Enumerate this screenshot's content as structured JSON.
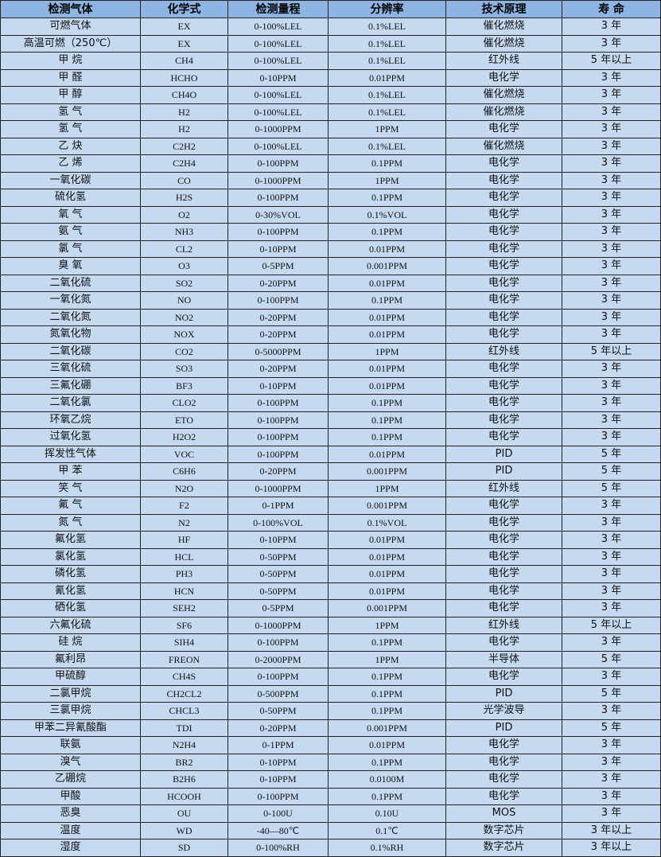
{
  "headers": [
    "检测气体",
    "化学式",
    "检测量程",
    "分辨率",
    "技术原理",
    "寿 命"
  ],
  "colors": {
    "header_bg": "#8db4e2",
    "row_bg": "#c5d9f1",
    "border": "#222222"
  },
  "rows": [
    [
      "可燃气体",
      "EX",
      "0-100%LEL",
      "0.1%LEL",
      "催化燃烧",
      "3 年"
    ],
    [
      "高温可燃（250℃）",
      "EX",
      "0-100%LEL",
      "0.1%LEL",
      "催化燃烧",
      "3 年"
    ],
    [
      "甲 烷",
      "CH4",
      "0-100%LEL",
      "0.1%LEL",
      "红外线",
      "5 年以上"
    ],
    [
      "甲 醛",
      "HCHO",
      "0-10PPM",
      "0.01PPM",
      "电化学",
      "3 年"
    ],
    [
      "甲 醇",
      "CH4O",
      "0-100%LEL",
      "0.1%LEL",
      "催化燃烧",
      "3 年"
    ],
    [
      "氢 气",
      "H2",
      "0-100%LEL",
      "0.1%LEL",
      "催化燃烧",
      "3 年"
    ],
    [
      "氢 气",
      "H2",
      "0-1000PPM",
      "1PPM",
      "电化学",
      "3 年"
    ],
    [
      "乙 炔",
      "C2H2",
      "0-100%LEL",
      "0.1%LEL",
      "催化燃烧",
      "3 年"
    ],
    [
      "乙 烯",
      "C2H4",
      "0-100PPM",
      "0.1PPM",
      "电化学",
      "3 年"
    ],
    [
      "一氧化碳",
      "CO",
      "0-1000PPM",
      "1PPM",
      "电化学",
      "3 年"
    ],
    [
      "硫化氢",
      "H2S",
      "0-100PPM",
      "0.1PPM",
      "电化学",
      "3 年"
    ],
    [
      "氧 气",
      "O2",
      "0-30%VOL",
      "0.1%VOL",
      "电化学",
      "3 年"
    ],
    [
      "氨 气",
      "NH3",
      "0-100PPM",
      "0.1PPM",
      "电化学",
      "3 年"
    ],
    [
      "氯 气",
      "CL2",
      "0-10PPM",
      "0.01PPM",
      "电化学",
      "3 年"
    ],
    [
      "臭 氧",
      "O3",
      "0-5PPM",
      "0.001PPM",
      "电化学",
      "3 年"
    ],
    [
      "二氧化硫",
      "SO2",
      "0-20PPM",
      "0.01PPM",
      "电化学",
      "3 年"
    ],
    [
      "一氧化氮",
      "NO",
      "0-100PPM",
      "0.1PPM",
      "电化学",
      "3 年"
    ],
    [
      "二氧化氮",
      "NO2",
      "0-20PPM",
      "0.01PPM",
      "电化学",
      "3 年"
    ],
    [
      "氮氧化物",
      "NOX",
      "0-20PPM",
      "0.01PPM",
      "电化学",
      "3 年"
    ],
    [
      "二氧化碳",
      "CO2",
      "0-5000PPM",
      "1PPM",
      "红外线",
      "5 年以上"
    ],
    [
      "三氧化硫",
      "SO3",
      "0-20PPM",
      "0.01PPM",
      "电化学",
      "3 年"
    ],
    [
      "三氟化硼",
      "BF3",
      "0-10PPM",
      "0.01PPM",
      "电化学",
      "3 年"
    ],
    [
      "二氧化氯",
      "CLO2",
      "0-100PPM",
      "0.1PPM",
      "电化学",
      "3 年"
    ],
    [
      "环氧乙烷",
      "ETO",
      "0-100PPM",
      "0.1PPM",
      "电化学",
      "3 年"
    ],
    [
      "过氧化氢",
      "H2O2",
      "0-100PPM",
      "0.1PPM",
      "电化学",
      "3 年"
    ],
    [
      "挥发性气体",
      "VOC",
      "0-100PPM",
      "0.01PPM",
      "PID",
      "5 年"
    ],
    [
      "甲 苯",
      "C6H6",
      "0-20PPM",
      "0.001PPM",
      "PID",
      "5 年"
    ],
    [
      "笑 气",
      "N2O",
      "0-1000PPM",
      "1PPM",
      "红外线",
      "5 年"
    ],
    [
      "氟 气",
      "F2",
      "0-1PPM",
      "0.001PPM",
      "电化学",
      "3 年"
    ],
    [
      "氮 气",
      "N2",
      "0-100%VOL",
      "0.1%VOL",
      "电化学",
      "3 年"
    ],
    [
      "氟化氢",
      "HF",
      "0-10PPM",
      "0.01PPM",
      "电化学",
      "3 年"
    ],
    [
      "氯化氢",
      "HCL",
      "0-50PPM",
      "0.01PPM",
      "电化学",
      "3 年"
    ],
    [
      "磷化氢",
      "PH3",
      "0-50PPM",
      "0.01PPM",
      "电化学",
      "3 年"
    ],
    [
      "氰化氢",
      "HCN",
      "0-50PPM",
      "0.01PPM",
      "电化学",
      "3 年"
    ],
    [
      "硒化氢",
      "SEH2",
      "0-5PPM",
      "0.001PPM",
      "电化学",
      "3 年"
    ],
    [
      "六氟化硫",
      "SF6",
      "0-1000PPM",
      "1PPM",
      "红外线",
      "5 年以上"
    ],
    [
      "硅 烷",
      "SIH4",
      "0-100PPM",
      "0.1PPM",
      "电化学",
      "3 年"
    ],
    [
      "氟利昂",
      "FREON",
      "0-2000PPM",
      "1PPM",
      "半导体",
      "5 年"
    ],
    [
      "甲硫醇",
      "CH4S",
      "0-100PPM",
      "0.1PPM",
      "电化学",
      "3 年"
    ],
    [
      "二氯甲烷",
      "CH2CL2",
      "0-500PPM",
      "0.1PPM",
      "PID",
      "5 年"
    ],
    [
      "三氯甲烷",
      "CHCL3",
      "0-50PPM",
      "0.1PPM",
      "光学波导",
      "3 年"
    ],
    [
      "甲苯二异氰酸酯",
      "TDI",
      "0-20PPM",
      "0.001PPM",
      "PID",
      "5 年"
    ],
    [
      "联氨",
      "N2H4",
      "0-1PPM",
      "0.01PPM",
      "电化学",
      "3 年"
    ],
    [
      "溴气",
      "BR2",
      "0-10PPM",
      "0.1PPM",
      "电化学",
      "3 年"
    ],
    [
      "乙硼烷",
      "B2H6",
      "0-10PPM",
      "0.0100M",
      "电化学",
      "3 年"
    ],
    [
      "甲酸",
      "HCOOH",
      "0-100PPM",
      "0.1PPM",
      "电化学",
      "3 年"
    ],
    [
      "恶臭",
      "OU",
      "0-100U",
      "0.10U",
      "MOS",
      "3 年"
    ],
    [
      "温度",
      "WD",
      "-40—80℃",
      "0.1℃",
      "数字芯片",
      "3 年以上"
    ],
    [
      "湿度",
      "SD",
      "0-100%RH",
      "0.1%RH",
      "数字芯片",
      "3 年以上"
    ]
  ]
}
